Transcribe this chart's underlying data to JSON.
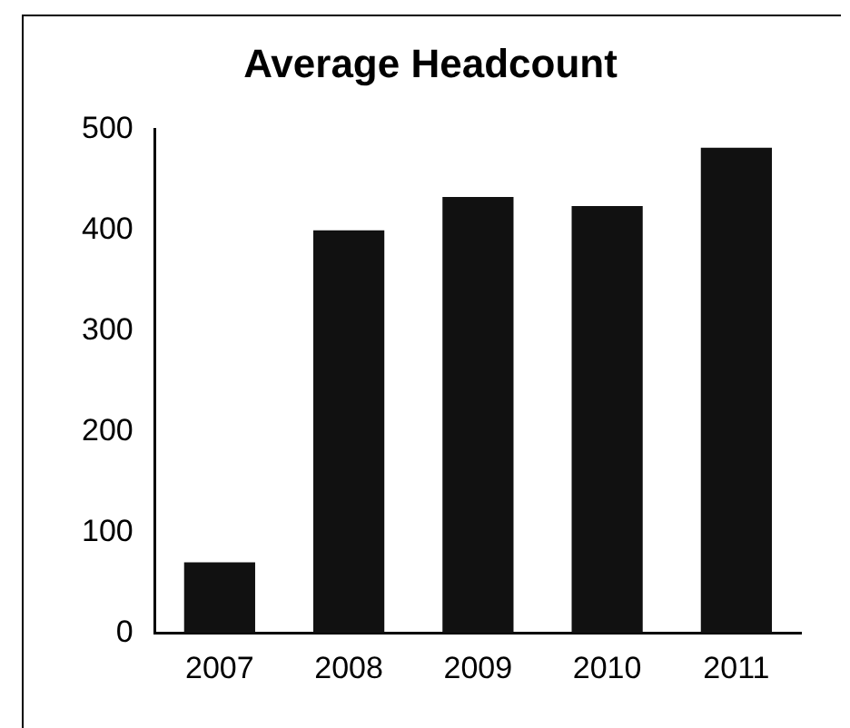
{
  "chart_data": {
    "type": "bar",
    "title": "Average Headcount",
    "categories": [
      "2007",
      "2008",
      "2009",
      "2010",
      "2011"
    ],
    "values": [
      70,
      400,
      433,
      424,
      482
    ],
    "color": "#111111",
    "ylim": [
      0,
      500
    ],
    "yticks": [
      0,
      100,
      200,
      300,
      400,
      500
    ],
    "grid": false,
    "legend": false
  }
}
